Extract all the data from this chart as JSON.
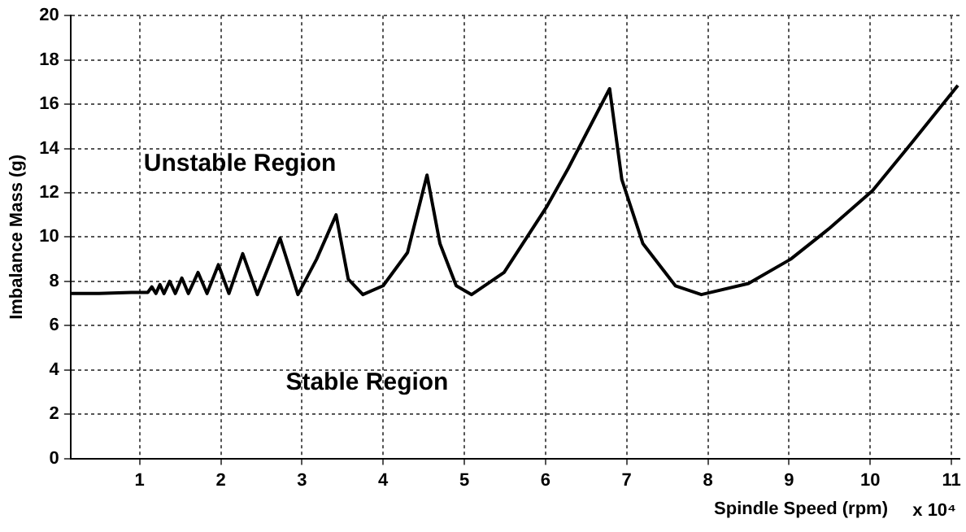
{
  "chart_data": {
    "type": "line",
    "xlabel": "Spindle Speed (rpm)",
    "ylabel": "Imbalance Mass (g)",
    "annotations": [
      "Unstable Region",
      "Stable Region",
      "x 10⁴"
    ],
    "xlim": [
      0.15,
      11.1
    ],
    "xticks": [
      1,
      2,
      3,
      4,
      5,
      6,
      7,
      8,
      9,
      10,
      11
    ],
    "ylim": [
      0,
      20
    ],
    "yticks": [
      0,
      2,
      4,
      6,
      8,
      10,
      12,
      14,
      16,
      18,
      20
    ],
    "grid": true,
    "legend": false,
    "marker": "none",
    "line_style": "solid",
    "series": [
      {
        "color": "#000000",
        "x": [
          0.15,
          0.5,
          0.9,
          1.1,
          1.15,
          1.2,
          1.25,
          1.3,
          1.37,
          1.44,
          1.52,
          1.6,
          1.72,
          1.83,
          1.97,
          2.1,
          2.27,
          2.45,
          2.73,
          2.95,
          3.18,
          3.42,
          3.57,
          3.75,
          4.0,
          4.3,
          4.54,
          4.7,
          4.9,
          5.09,
          5.49,
          6.02,
          6.28,
          6.79,
          6.94,
          7.2,
          7.6,
          7.92,
          8.5,
          9.02,
          9.5,
          10.03,
          10.5,
          11.08
        ],
        "values": [
          7.45,
          7.45,
          7.5,
          7.5,
          7.75,
          7.45,
          7.85,
          7.45,
          8.0,
          7.45,
          8.15,
          7.45,
          8.4,
          7.45,
          8.75,
          7.45,
          9.25,
          7.4,
          9.95,
          7.4,
          9.0,
          11.0,
          8.1,
          7.4,
          7.8,
          9.3,
          12.8,
          9.7,
          7.8,
          7.4,
          8.4,
          11.4,
          13.1,
          16.7,
          12.6,
          9.7,
          7.8,
          7.4,
          7.9,
          9.0,
          10.4,
          12.1,
          14.2,
          16.85
        ]
      }
    ]
  }
}
